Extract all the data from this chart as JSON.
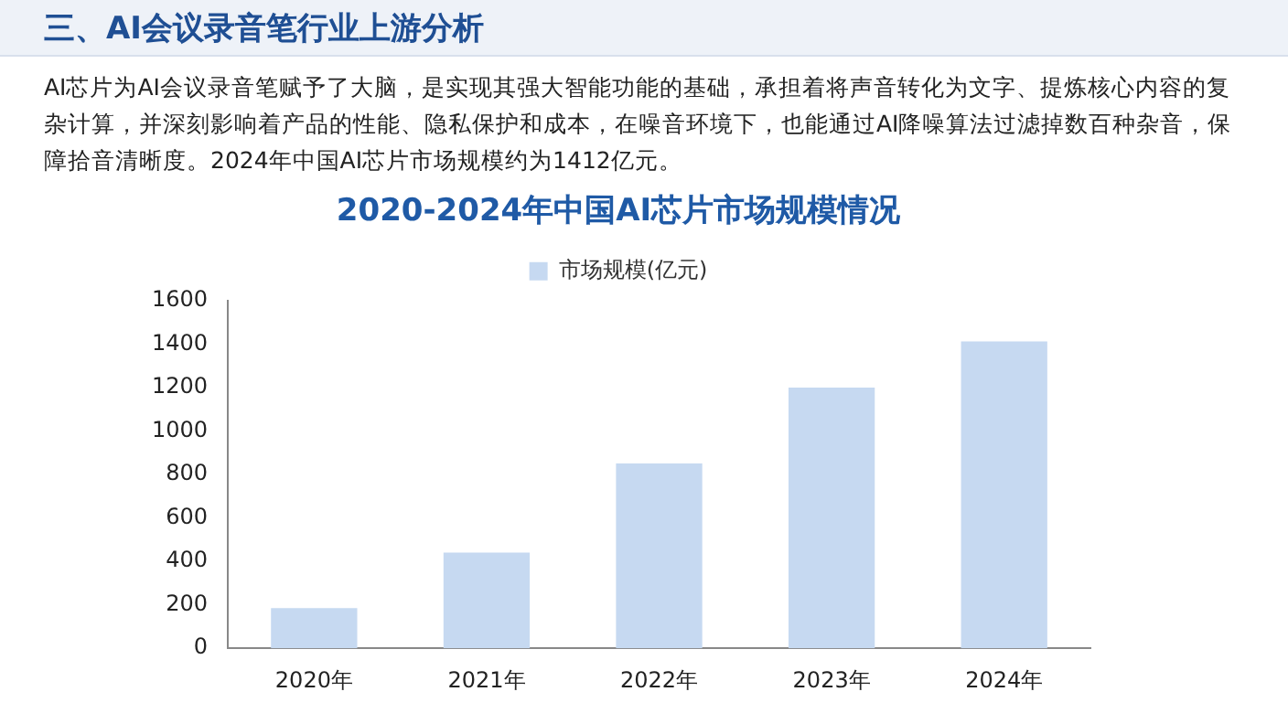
{
  "chart_data": {
    "type": "bar",
    "title": "2020-2024年中国AI芯片市场规模情况",
    "annotations": [
      "三、AI会议录音笔行业上游分析",
      "AI芯片为AI会议录音笔赋予了大脑，是实现其强大智能功能的基础，承担着将声音转化为文字、提炼核心内容的复杂计算，并深刻影响着产品的性能、隐私保护和成本，在噪音环境下，也能通过AI降噪算法过滤掉数百种杂音，保障拾音清晰度。2024年中国AI芯片市场规模约为1412亿元。"
    ],
    "categories": [
      "2020年",
      "2021年",
      "2022年",
      "2023年",
      "2024年"
    ],
    "series": [
      {
        "name": "市场规模(亿元)",
        "color": "#c6d9f1",
        "values": [
          185,
          440,
          850,
          1200,
          1412
        ]
      }
    ],
    "ylim": [
      0,
      1600
    ],
    "yticks": [
      0,
      200,
      400,
      600,
      800,
      1000,
      1200,
      1400,
      1600
    ],
    "grid": false,
    "legend": "top"
  }
}
